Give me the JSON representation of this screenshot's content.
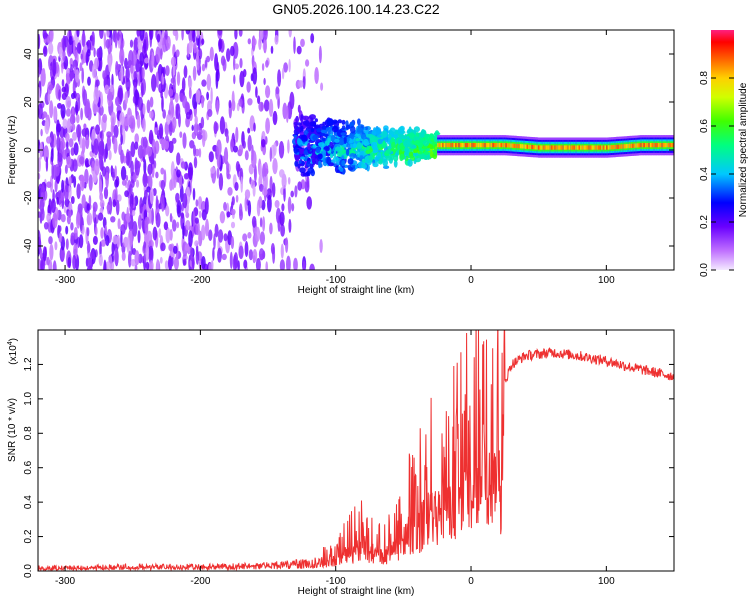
{
  "chart_data": [
    {
      "type": "heatmap",
      "title": "GN05.2026.100.14.23.C22",
      "xlabel": "Height of straight line (km)",
      "ylabel": "Frequency (Hz)",
      "xlim": [
        -320,
        150
      ],
      "ylim": [
        -50,
        50
      ],
      "xticks": [
        -300,
        -200,
        -100,
        0,
        100
      ],
      "yticks": [
        -40,
        -20,
        0,
        20,
        40
      ],
      "colorbar": {
        "label": "Normalized spectral amplitude",
        "range": [
          0,
          1
        ],
        "ticks": [
          0.0,
          0.2,
          0.4,
          0.6,
          0.8
        ]
      },
      "description_series": [
        {
          "name": "noise_region",
          "x_range": [
            -320,
            -130
          ],
          "freq_range": [
            -50,
            50
          ],
          "amplitude": 0.15
        },
        {
          "name": "transition_region",
          "x_range": [
            -130,
            -25
          ],
          "freq_range": [
            -15,
            15
          ],
          "amplitude": 0.35
        },
        {
          "name": "carrier_line",
          "x_range": [
            -25,
            150
          ],
          "frequency_center": [
            2,
            2,
            2,
            1,
            1,
            1,
            2,
            2
          ],
          "frequency_x": [
            -25,
            0,
            25,
            50,
            75,
            100,
            125,
            150
          ],
          "amplitude": 0.9
        }
      ]
    },
    {
      "type": "line",
      "xlabel": "Height of straight line (km)",
      "ylabel": "SNR (10 * v/v)",
      "scale_label": "(x10",
      "scale_exp": "4",
      "scale_close": ")",
      "xlim": [
        -320,
        150
      ],
      "ylim": [
        0,
        1.4
      ],
      "xticks": [
        -300,
        -200,
        -100,
        0,
        100
      ],
      "yticks": [
        0.0,
        0.2,
        0.4,
        0.6,
        0.8,
        1.0,
        1.2
      ],
      "color": "#ee3030",
      "series": [
        {
          "name": "SNR",
          "x": [
            -320,
            -300,
            -250,
            -200,
            -150,
            -120,
            -100,
            -90,
            -80,
            -70,
            -60,
            -50,
            -40,
            -30,
            -20,
            -10,
            -5,
            0,
            5,
            10,
            15,
            20,
            30,
            40,
            60,
            80,
            100,
            120,
            150
          ],
          "y": [
            0.02,
            0.02,
            0.03,
            0.03,
            0.04,
            0.06,
            0.1,
            0.2,
            0.25,
            0.15,
            0.2,
            0.35,
            0.45,
            0.6,
            0.6,
            0.75,
            0.85,
            0.7,
            0.95,
            1.1,
            1.1,
            1.0,
            1.2,
            1.25,
            1.27,
            1.25,
            1.22,
            1.18,
            1.13
          ]
        }
      ]
    }
  ]
}
